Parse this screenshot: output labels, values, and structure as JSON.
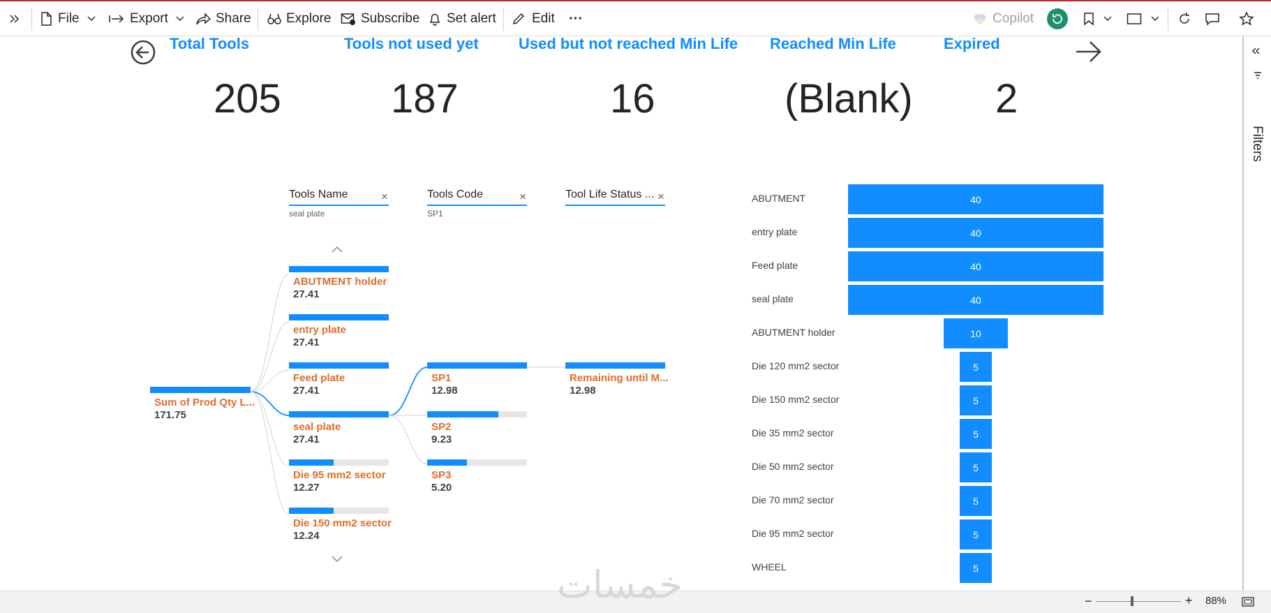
{
  "toolbar": {
    "file_label": "File",
    "export_label": "Export",
    "share_label": "Share",
    "explore_label": "Explore",
    "subscribe_label": "Subscribe",
    "set_alert_label": "Set alert",
    "edit_label": "Edit",
    "more_label": "···",
    "copilot_label": "Copilot"
  },
  "kpis": [
    {
      "title": "Total Tools",
      "value": "205"
    },
    {
      "title": "Tools not used yet",
      "value": "187"
    },
    {
      "title": "Used but not reached Min Life",
      "value": "16"
    },
    {
      "title": "Reached Min Life",
      "value": "(Blank)"
    },
    {
      "title": "Expired",
      "value": "2"
    }
  ],
  "tree": {
    "root": {
      "label": "Sum of Prod Qty L...",
      "value": "171.75"
    },
    "levels": [
      {
        "title": "Tools Name",
        "selected": "seal plate"
      },
      {
        "title": "Tools Code",
        "selected": "SP1"
      },
      {
        "title": "Tool Life Status ...",
        "selected": ""
      }
    ],
    "names": [
      {
        "label": "ABUTMENT holder",
        "value": "27.41",
        "fraction": 1.0
      },
      {
        "label": "entry plate",
        "value": "27.41",
        "fraction": 1.0
      },
      {
        "label": "Feed plate",
        "value": "27.41",
        "fraction": 1.0
      },
      {
        "label": "seal plate",
        "value": "27.41",
        "fraction": 1.0
      },
      {
        "label": "Die 95 mm2 sector",
        "value": "12.27",
        "fraction": 0.448
      },
      {
        "label": "Die 150 mm2 sector",
        "value": "12.24",
        "fraction": 0.447
      }
    ],
    "codes": [
      {
        "label": "SP1",
        "value": "12.98",
        "fraction": 1.0
      },
      {
        "label": "SP2",
        "value": "9.23",
        "fraction": 0.711
      },
      {
        "label": "SP3",
        "value": "5.20",
        "fraction": 0.401
      }
    ],
    "status": [
      {
        "label": "Remaining until M...",
        "value": "12.98",
        "fraction": 1.0
      }
    ]
  },
  "chart_data": {
    "type": "bar",
    "orientation": "horizontal-funnel",
    "categories": [
      "ABUTMENT",
      "entry plate",
      "Feed plate",
      "seal plate",
      "ABUTMENT holder",
      "Die 120 mm2 sector",
      "Die 150 mm2 sector",
      "Die 35 mm2 sector",
      "Die 50 mm2 sector",
      "Die 70 mm2 sector",
      "Die 95 mm2 sector",
      "WHEEL"
    ],
    "values": [
      40,
      40,
      40,
      40,
      10,
      5,
      5,
      5,
      5,
      5,
      5,
      5
    ],
    "color": "#118dff"
  },
  "sidebar": {
    "filters_label": "Filters"
  },
  "statusbar": {
    "zoom_label": "88%"
  },
  "watermark": "خمسات",
  "colors": {
    "accent": "#118dff",
    "label_orange": "#e06c2a",
    "title_blue": "#118dff"
  }
}
